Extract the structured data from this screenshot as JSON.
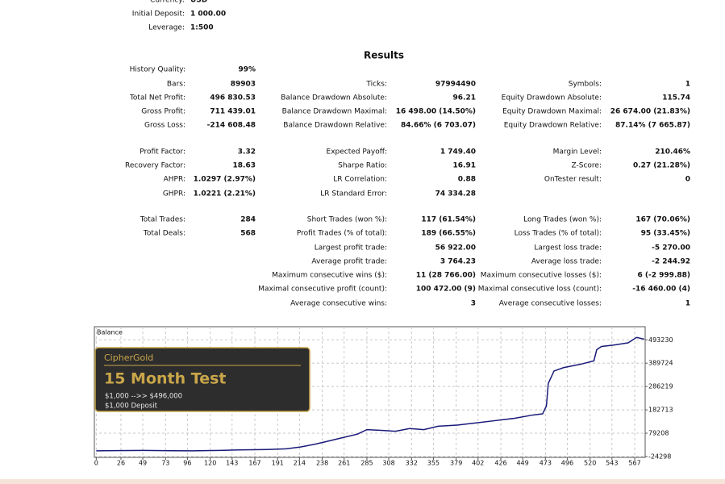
{
  "report": {
    "top": [
      {
        "label": "Currency:",
        "value": "USD"
      },
      {
        "label": "Initial Deposit:",
        "value": "1 000.00"
      },
      {
        "label": "Leverage:",
        "value": "1:500"
      }
    ],
    "title": "Results",
    "rows": [
      {
        "left": {
          "label": "History Quality:",
          "value": "99%"
        }
      },
      {
        "left": {
          "label": "Bars:",
          "value": "89903"
        },
        "middle": {
          "label": "Ticks:",
          "value": "97994490"
        },
        "right": {
          "label": "Symbols:",
          "value": "1"
        }
      },
      {
        "left": {
          "label": "Total Net Profit:",
          "value": "496 830.53"
        },
        "middle": {
          "label": "Balance Drawdown Absolute:",
          "value": "96.21"
        },
        "right": {
          "label": "Equity Drawdown Absolute:",
          "value": "115.74"
        }
      },
      {
        "left": {
          "label": "Gross Profit:",
          "value": "711 439.01"
        },
        "middle": {
          "label": "Balance Drawdown Maximal:",
          "value": "16 498.00 (14.50%)"
        },
        "right": {
          "label": "Equity Drawdown Maximal:",
          "value": "26 674.00 (21.83%)"
        }
      },
      {
        "left": {
          "label": "Gross Loss:",
          "value": "-214 608.48"
        },
        "middle": {
          "label": "Balance Drawdown Relative:",
          "value": "84.66% (6 703.07)"
        },
        "right": {
          "label": "Equity Drawdown Relative:",
          "value": "87.14% (7 665.87)"
        }
      },
      {
        "left": {
          "label": "Profit Factor:",
          "value": "3.32"
        },
        "middle": {
          "label": "Expected Payoff:",
          "value": "1 749.40"
        },
        "right": {
          "label": "Margin Level:",
          "value": "210.46%"
        }
      },
      {
        "left": {
          "label": "Recovery Factor:",
          "value": "18.63"
        },
        "middle": {
          "label": "Sharpe Ratio:",
          "value": "16.91"
        },
        "right": {
          "label": "Z-Score:",
          "value": "0.27 (21.28%)"
        }
      },
      {
        "left": {
          "label": "AHPR:",
          "value": "1.0297 (2.97%)"
        },
        "middle": {
          "label": "LR Correlation:",
          "value": "0.88"
        },
        "right": {
          "label": "OnTester result:",
          "value": "0"
        }
      },
      {
        "left": {
          "label": "GHPR:",
          "value": "1.0221 (2.21%)"
        },
        "middle": {
          "label": "LR Standard Error:",
          "value": "74 334.28"
        }
      },
      {
        "left": {
          "label": "Total Trades:",
          "value": "284"
        },
        "middle": {
          "label": "Short Trades (won %):",
          "value": "117 (61.54%)"
        },
        "right": {
          "label": "Long Trades (won %):",
          "value": "167 (70.06%)"
        }
      },
      {
        "left": {
          "label": "Total Deals:",
          "value": "568"
        },
        "middle": {
          "label": "Profit Trades (% of total):",
          "value": "189 (66.55%)"
        },
        "right": {
          "label": "Loss Trades (% of total):",
          "value": "95 (33.45%)"
        }
      },
      {
        "middle": {
          "label": "Largest profit trade:",
          "value": "56 922.00"
        },
        "right": {
          "label": "Largest loss trade:",
          "value": "-5 270.00"
        }
      },
      {
        "middle": {
          "label": "Average profit trade:",
          "value": "3 764.23"
        },
        "right": {
          "label": "Average loss trade:",
          "value": "-2 244.92"
        }
      },
      {
        "middle": {
          "label": "Maximum consecutive wins ($):",
          "value": "11 (28 766.00)"
        },
        "right": {
          "label": "Maximum consecutive losses ($):",
          "value": "6 (-2 999.88)"
        }
      },
      {
        "middle": {
          "label": "Maximal consecutive profit (count):",
          "value": "100 472.00 (9)"
        },
        "right": {
          "label": "Maximal consecutive loss (count):",
          "value": "-16 460.00 (4)"
        }
      },
      {
        "middle": {
          "label": "Average consecutive wins:",
          "value": "3"
        },
        "right": {
          "label": "Average consecutive losses:",
          "value": "1"
        }
      }
    ]
  },
  "chart_data": {
    "type": "line",
    "title": "Balance",
    "x": [
      0,
      20,
      50,
      80,
      100,
      130,
      150,
      180,
      200,
      215,
      230,
      245,
      260,
      275,
      285,
      300,
      315,
      330,
      345,
      360,
      380,
      400,
      420,
      440,
      460,
      470,
      474,
      476,
      482,
      492,
      510,
      524,
      527,
      532,
      545,
      560,
      569,
      577
    ],
    "series": [
      {
        "name": "Balance",
        "color": "#1a1a7a",
        "values": [
          1000,
          2000,
          3000,
          1500,
          1000,
          3000,
          5000,
          7000,
          10000,
          18000,
          30000,
          45000,
          60000,
          75000,
          95000,
          92000,
          88000,
          100000,
          95000,
          110000,
          115000,
          125000,
          135000,
          145000,
          160000,
          165000,
          200000,
          300000,
          355000,
          370000,
          385000,
          400000,
          449500,
          464000,
          470000,
          480000,
          504000,
          496000
        ]
      }
    ],
    "xlim": [
      -2,
      578
    ],
    "ylim": [
      -28000,
      551500
    ],
    "xticks": [
      0,
      26,
      49,
      73,
      96,
      120,
      143,
      167,
      191,
      214,
      238,
      261,
      285,
      308,
      332,
      355,
      379,
      402,
      426,
      449,
      473,
      496,
      520,
      543,
      567
    ],
    "yticks": [
      493230,
      389724,
      286219,
      182713,
      79208,
      -24298
    ],
    "grid": true,
    "annotation": {
      "brand": "CipherGold",
      "headline": "15 Month Test",
      "line1": "$1,000 -->> $496,000",
      "line2": "$1,000 Deposit"
    }
  }
}
